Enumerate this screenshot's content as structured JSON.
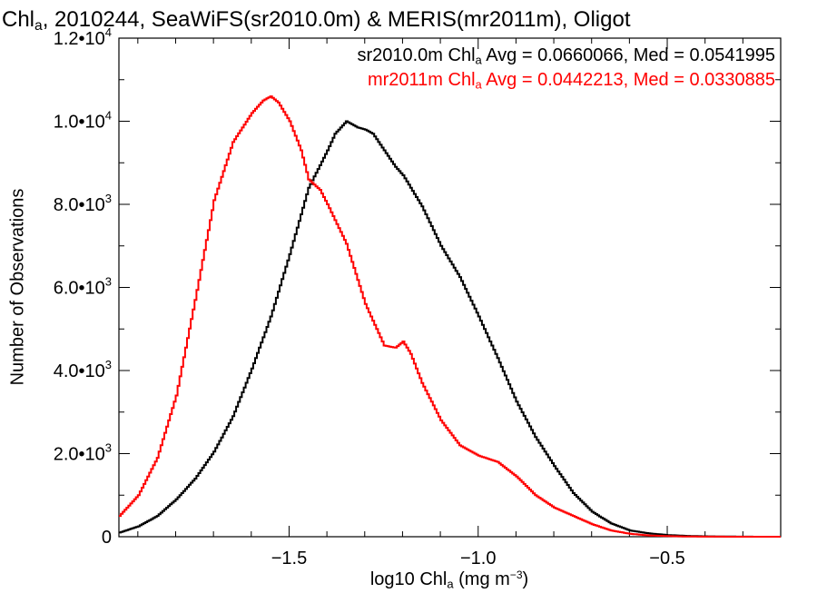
{
  "chart_data": {
    "type": "line",
    "title": {
      "prefix": "Chl",
      "prefix_sub": "a",
      "rest": ", 2010244, SeaWiFS(sr2010.0m) & MERIS(mr2011m), Oligot"
    },
    "xlabel": {
      "pre": "log10 Chl",
      "sub": "a",
      "mid": " (mg m",
      "sup": "−3",
      "post": ")"
    },
    "ylabel": "Number of Observations",
    "xlim": [
      -1.95,
      -0.2
    ],
    "ylim": [
      0,
      12000
    ],
    "x_ticks": [
      -1.5,
      -1.0,
      -0.5
    ],
    "x_tick_labels": [
      "−1.5",
      "−1.0",
      "−0.5"
    ],
    "y_ticks": [
      0,
      2000,
      4000,
      6000,
      8000,
      10000,
      12000
    ],
    "y_tick_labels": [
      {
        "base": "0",
        "exp": ""
      },
      {
        "base": "2.0•10",
        "exp": "3"
      },
      {
        "base": "4.0•10",
        "exp": "3"
      },
      {
        "base": "6.0•10",
        "exp": "3"
      },
      {
        "base": "8.0•10",
        "exp": "3"
      },
      {
        "base": "1.0•10",
        "exp": "4"
      },
      {
        "base": "1.2•10",
        "exp": "4"
      }
    ],
    "series": [
      {
        "name": "sr2010.0m",
        "color": "#000000",
        "legend": {
          "pre": "sr2010.0m Chl",
          "sub": "a",
          "post": " Avg = 0.0660066, Med = 0.0541995"
        },
        "x": [
          -1.95,
          -1.9,
          -1.85,
          -1.8,
          -1.75,
          -1.7,
          -1.65,
          -1.6,
          -1.55,
          -1.5,
          -1.45,
          -1.4,
          -1.38,
          -1.35,
          -1.32,
          -1.3,
          -1.28,
          -1.25,
          -1.22,
          -1.2,
          -1.15,
          -1.1,
          -1.05,
          -1.0,
          -0.95,
          -0.9,
          -0.85,
          -0.8,
          -0.75,
          -0.7,
          -0.65,
          -0.6,
          -0.55,
          -0.5,
          -0.45,
          -0.4,
          -0.35,
          -0.3,
          -0.25,
          -0.2
        ],
        "y": [
          100,
          250,
          500,
          900,
          1400,
          2050,
          2900,
          4050,
          5300,
          6800,
          8400,
          9300,
          9700,
          10000,
          9850,
          9800,
          9700,
          9300,
          8900,
          8700,
          7950,
          7000,
          6250,
          5300,
          4300,
          3250,
          2400,
          1700,
          1050,
          600,
          320,
          150,
          80,
          40,
          20,
          10,
          5,
          2,
          0,
          0
        ]
      },
      {
        "name": "mr2011m",
        "color": "#ff0000",
        "legend": {
          "pre": "mr2011m Chl",
          "sub": "a",
          "post": " Avg = 0.0442213, Med = 0.0330885"
        },
        "x": [
          -1.95,
          -1.9,
          -1.85,
          -1.8,
          -1.75,
          -1.7,
          -1.65,
          -1.6,
          -1.57,
          -1.55,
          -1.53,
          -1.5,
          -1.47,
          -1.45,
          -1.42,
          -1.4,
          -1.35,
          -1.3,
          -1.25,
          -1.22,
          -1.2,
          -1.18,
          -1.15,
          -1.1,
          -1.05,
          -1.0,
          -0.95,
          -0.9,
          -0.85,
          -0.8,
          -0.75,
          -0.7,
          -0.65,
          -0.6,
          -0.55,
          -0.5,
          -0.45,
          -0.4,
          -0.3,
          -0.2
        ],
        "y": [
          500,
          1000,
          1900,
          3400,
          5700,
          8100,
          9500,
          10200,
          10500,
          10600,
          10450,
          10000,
          9300,
          8600,
          8350,
          8000,
          7050,
          5600,
          4600,
          4550,
          4700,
          4400,
          3700,
          2800,
          2200,
          1950,
          1800,
          1450,
          1000,
          700,
          500,
          300,
          150,
          70,
          30,
          15,
          5,
          2,
          0,
          0
        ]
      }
    ]
  }
}
